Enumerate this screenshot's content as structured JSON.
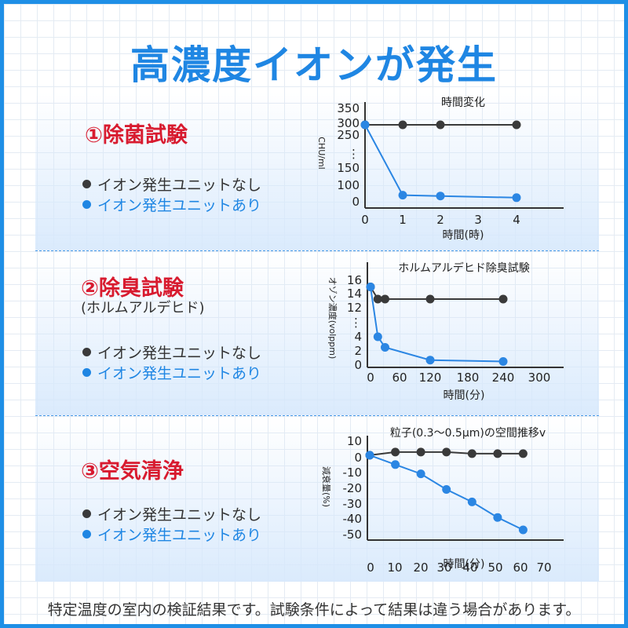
{
  "title": "高濃度イオンが発生",
  "sections": [
    {
      "title": "①除菌試験",
      "subtitle": "",
      "legend_without": "イオン発生ユニットなし",
      "legend_with": "イオン発生ユニットあり"
    },
    {
      "title": "②除臭試験",
      "subtitle": "(ホルムアルデヒド)",
      "legend_without": "イオン発生ユニットなし",
      "legend_with": "イオン発生ユニットあり"
    },
    {
      "title": "③空気清浄",
      "subtitle": "",
      "legend_without": "イオン発生ユニットなし",
      "legend_with": "イオン発生ユニットあり"
    }
  ],
  "footer": "特定温度の室内の検証結果です。試験条件によって結果は違う場合があります。",
  "colors": {
    "without": "#3a3a3a",
    "with": "#2b86e3",
    "accent": "#1f86e3",
    "title_red": "#d81b2f"
  },
  "chart_data": [
    {
      "type": "line",
      "title": "時間変化",
      "xlabel": "時間(時)",
      "ylabel": "CHU/ml",
      "x_ticks": [
        "0",
        "1",
        "2",
        "3",
        "4"
      ],
      "y_ticks": [
        "0",
        "100",
        "150",
        "⋮",
        "250",
        "300",
        "350"
      ],
      "axis_break": true,
      "series": [
        {
          "name": "イオン発生ユニットなし",
          "x": [
            0,
            1,
            2,
            4
          ],
          "y": [
            300,
            300,
            300,
            300
          ]
        },
        {
          "name": "イオン発生ユニットあり",
          "x": [
            0,
            1,
            2,
            4
          ],
          "y": [
            300,
            40,
            35,
            25
          ]
        }
      ]
    },
    {
      "type": "line",
      "title": "ホルムアルデヒド除臭試験",
      "xlabel": "時間(分)",
      "ylabel": "オゾン濃度(volppm)",
      "x_ticks": [
        "0",
        "60",
        "120",
        "180",
        "240",
        "300"
      ],
      "y_ticks": [
        "0",
        "2",
        "4",
        "⋮",
        "12",
        "14",
        "16"
      ],
      "axis_break": true,
      "series": [
        {
          "name": "イオン発生ユニットなし",
          "x": [
            0,
            15,
            30,
            120,
            240
          ],
          "y": [
            15,
            13,
            13,
            13,
            13
          ]
        },
        {
          "name": "イオン発生ユニットあり",
          "x": [
            0,
            15,
            30,
            120,
            240
          ],
          "y": [
            15,
            4,
            2.5,
            0.7,
            0.5
          ]
        }
      ]
    },
    {
      "type": "line",
      "title": "粒子(0.3〜0.5μm)の空間推移v",
      "xlabel": "時間(分)",
      "ylabel": "減衰量(%)",
      "xlim": [
        0,
        70
      ],
      "ylim": [
        -50,
        10
      ],
      "x_ticks": [
        "0",
        "10",
        "20",
        "30",
        "40",
        "50",
        "60",
        "70"
      ],
      "y_ticks": [
        "10",
        "0",
        "-10",
        "-20",
        "-30",
        "-40",
        "-50"
      ],
      "series": [
        {
          "name": "イオン発生ユニットなし",
          "x": [
            0,
            10,
            20,
            30,
            40,
            50,
            60
          ],
          "y": [
            1,
            3,
            3,
            3,
            2,
            2,
            2
          ]
        },
        {
          "name": "イオン発生ユニットあり",
          "x": [
            0,
            10,
            20,
            30,
            40,
            50,
            60
          ],
          "y": [
            1,
            -5,
            -11,
            -21,
            -29,
            -39,
            -47
          ]
        }
      ]
    }
  ]
}
